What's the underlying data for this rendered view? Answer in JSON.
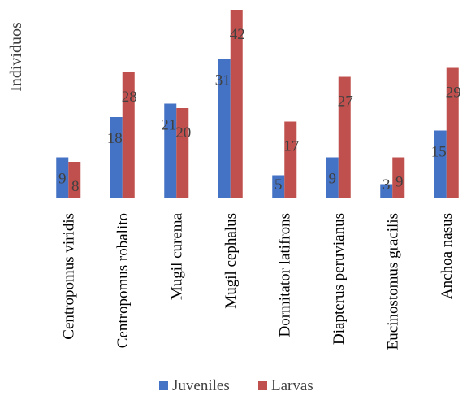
{
  "chart_data": {
    "type": "bar",
    "title": "",
    "xlabel": "",
    "ylabel": "Individuos",
    "ylim": [
      0,
      42
    ],
    "grid": false,
    "legend_position": "bottom",
    "categories": [
      "Centropomus viridis",
      "Centropomus robalito",
      "Mugil curema",
      "Mugil cephalus",
      "Dormitator latifrons",
      "Diapterus peruvianus",
      "Eucinostomus gracilis",
      "Anchoa nasus"
    ],
    "series": [
      {
        "name": "Juveniles",
        "color": "#4472C4",
        "values": [
          9,
          18,
          21,
          31,
          5,
          9,
          3,
          15
        ]
      },
      {
        "name": "Larvas",
        "color": "#C0504D",
        "values": [
          8,
          28,
          20,
          42,
          17,
          27,
          9,
          29
        ]
      }
    ]
  }
}
